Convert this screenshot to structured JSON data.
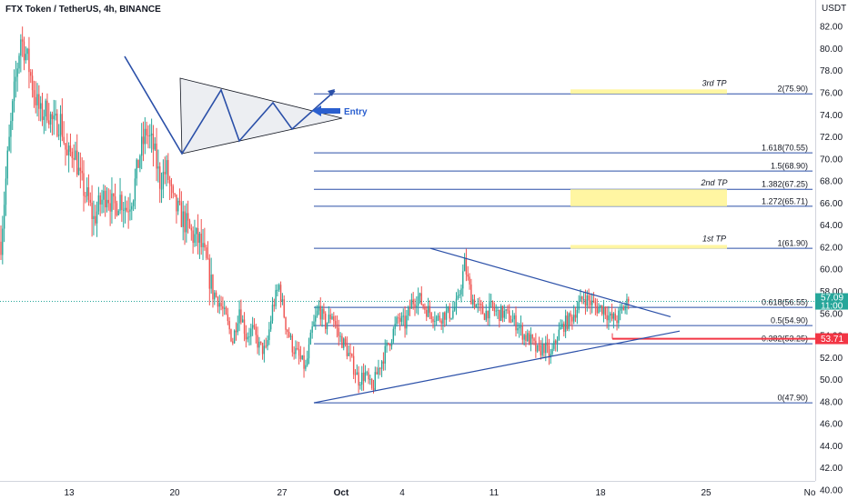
{
  "header": {
    "title": "FTX Token / TetherUS, 4h, BINANCE"
  },
  "currency": "USDT",
  "price_tag": {
    "price": "57.09",
    "countdown": "11:00",
    "color": "#26a69a"
  },
  "stop_tag": {
    "price": "53.71",
    "color": "#f23645"
  },
  "entry_label": "Entry",
  "colors": {
    "up": "#26a69a",
    "down": "#ef5350",
    "line": "#2a4fa8",
    "highlight": "#fff59d"
  },
  "chart_data": {
    "type": "candlestick",
    "title": "FTX Token / TetherUS, 4h, BINANCE",
    "ylabel": "USDT",
    "ylim": [
      40.0,
      83.0
    ],
    "y_ticks": [
      "40.00",
      "42.00",
      "44.00",
      "46.00",
      "48.00",
      "50.00",
      "52.00",
      "54.00",
      "56.00",
      "58.00",
      "60.00",
      "62.00",
      "64.00",
      "66.00",
      "68.00",
      "70.00",
      "72.00",
      "74.00",
      "76.00",
      "78.00",
      "80.00",
      "82.00"
    ],
    "x_ticks": [
      "13",
      "20",
      "27",
      "Oct",
      "4",
      "11",
      "18",
      "25",
      "No"
    ],
    "last_price": 57.09,
    "fib_levels": [
      {
        "label": "0(47.90)",
        "price": 47.9
      },
      {
        "label": "0.382(53.25)",
        "price": 53.25
      },
      {
        "label": "0.5(54.90)",
        "price": 54.9
      },
      {
        "label": "0.618(56.55)",
        "price": 56.55
      },
      {
        "label": "1(61.90)",
        "price": 61.9
      },
      {
        "label": "1.272(65.71)",
        "price": 65.71
      },
      {
        "label": "1.382(67.25)",
        "price": 67.25
      },
      {
        "label": "1.5(68.90)",
        "price": 68.9
      },
      {
        "label": "1.618(70.55)",
        "price": 70.55
      },
      {
        "label": "2(75.90)",
        "price": 75.9
      }
    ],
    "targets": [
      {
        "label": "1st TP",
        "from": 61.9,
        "to": 62.2
      },
      {
        "label": "2nd TP",
        "from": 65.71,
        "to": 67.25
      },
      {
        "label": "3rd TP",
        "from": 75.9,
        "to": 76.3
      }
    ],
    "stop_level": 53.71,
    "candle_anchors": [
      [
        0,
        62.5
      ],
      [
        4,
        70
      ],
      [
        8,
        76
      ],
      [
        12,
        81
      ],
      [
        16,
        79
      ],
      [
        20,
        76
      ],
      [
        24,
        74
      ],
      [
        28,
        74.5
      ],
      [
        32,
        73
      ],
      [
        36,
        73.5
      ],
      [
        40,
        70
      ],
      [
        44,
        71
      ],
      [
        48,
        68
      ],
      [
        52,
        66.5
      ],
      [
        56,
        64.5
      ],
      [
        60,
        66
      ],
      [
        64,
        67
      ],
      [
        68,
        65.5
      ],
      [
        72,
        66.5
      ],
      [
        76,
        65.5
      ],
      [
        80,
        67
      ],
      [
        84,
        70.5
      ],
      [
        88,
        72.5
      ],
      [
        92,
        71
      ],
      [
        96,
        68
      ],
      [
        100,
        69
      ],
      [
        104,
        66
      ],
      [
        108,
        65
      ],
      [
        112,
        64
      ],
      [
        116,
        63
      ],
      [
        120,
        62.5
      ],
      [
        124,
        60.5
      ],
      [
        128,
        58
      ],
      [
        132,
        57
      ],
      [
        136,
        55.5
      ],
      [
        140,
        53.5
      ],
      [
        144,
        56.5
      ],
      [
        148,
        54
      ],
      [
        152,
        54.5
      ],
      [
        156,
        53
      ],
      [
        160,
        52.5
      ],
      [
        164,
        56.5
      ],
      [
        168,
        58.5
      ],
      [
        172,
        55
      ],
      [
        176,
        53
      ],
      [
        180,
        52
      ],
      [
        184,
        51
      ],
      [
        188,
        54.5
      ],
      [
        192,
        56.5
      ],
      [
        196,
        55
      ],
      [
        200,
        56
      ],
      [
        204,
        54
      ],
      [
        208,
        53
      ],
      [
        212,
        51.5
      ],
      [
        216,
        50
      ],
      [
        220,
        50.5
      ],
      [
        224,
        49
      ],
      [
        228,
        51
      ],
      [
        232,
        52.5
      ],
      [
        236,
        54
      ],
      [
        240,
        55.5
      ],
      [
        244,
        55
      ],
      [
        248,
        57
      ],
      [
        252,
        57.5
      ],
      [
        256,
        56.5
      ],
      [
        260,
        56
      ],
      [
        264,
        55.5
      ],
      [
        268,
        56
      ],
      [
        272,
        56
      ],
      [
        276,
        57
      ],
      [
        280,
        60.5
      ],
      [
        284,
        57.5
      ],
      [
        288,
        56.5
      ],
      [
        292,
        56
      ],
      [
        296,
        56.5
      ],
      [
        300,
        56
      ],
      [
        304,
        56
      ],
      [
        308,
        55.5
      ],
      [
        312,
        55
      ],
      [
        316,
        54
      ],
      [
        320,
        53.5
      ],
      [
        324,
        52.5
      ],
      [
        328,
        53
      ],
      [
        332,
        52
      ],
      [
        336,
        54
      ],
      [
        340,
        55
      ],
      [
        344,
        55.5
      ],
      [
        348,
        56.5
      ],
      [
        352,
        57.5
      ],
      [
        356,
        57
      ],
      [
        360,
        56.5
      ],
      [
        364,
        56.5
      ],
      [
        368,
        55.5
      ],
      [
        372,
        55.5
      ],
      [
        376,
        56.5
      ],
      [
        379,
        57.09
      ]
    ]
  }
}
